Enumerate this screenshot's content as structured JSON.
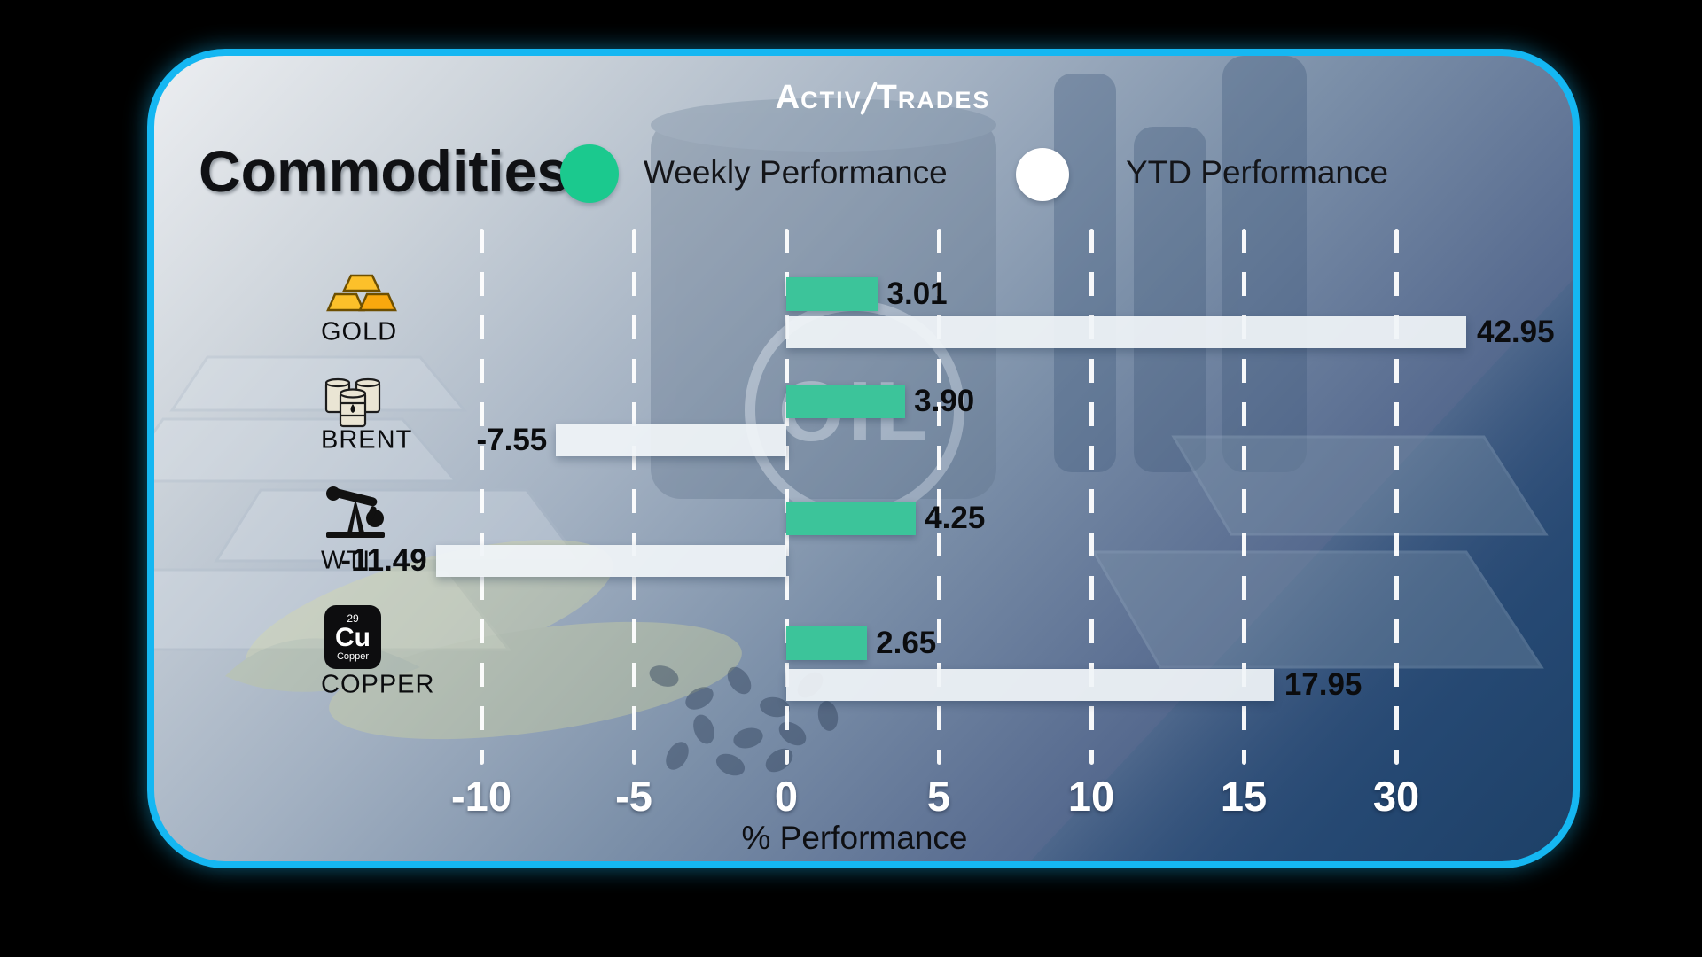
{
  "brand": {
    "first_cap": "A",
    "first_rest": "CTIV",
    "second_cap": "T",
    "second_rest": "RADES"
  },
  "header": {
    "title": "Commodities"
  },
  "background": {
    "oil_text": "OIL"
  },
  "icons": {
    "gold": "gold-bars-icon",
    "brent": "oil-barrels-icon",
    "wti": "oil-pumpjack-icon",
    "copper": {
      "number": "29",
      "symbol": "Cu",
      "name": "Copper"
    }
  },
  "colors": {
    "card_border": "#15b7f2",
    "weekly_dot": "#1bc98e",
    "weekly_bar": "#3cc49a",
    "ytd_dot": "#ffffff",
    "ytd_bar": "#eef2f6",
    "page_background": "#000000"
  },
  "chart_data": {
    "type": "bar",
    "orientation": "horizontal",
    "title": "Commodities",
    "xlabel": "% Performance",
    "grid": "dashed-vertical",
    "legend_position": "top",
    "legend": [
      {
        "name": "Weekly Performance",
        "color": "#1bc98e"
      },
      {
        "name": "YTD Performance",
        "color": "#ffffff"
      }
    ],
    "categories": [
      "GOLD",
      "BRENT",
      "WTI",
      "COPPER"
    ],
    "series": [
      {
        "name": "Weekly Performance",
        "values": [
          3.01,
          3.9,
          4.25,
          2.65
        ]
      },
      {
        "name": "YTD Performance",
        "values": [
          42.95,
          -7.55,
          -11.49,
          17.95
        ]
      }
    ],
    "value_labels": {
      "weekly": [
        "3.01",
        "3.90",
        "4.25",
        "2.65"
      ],
      "ytd": [
        "42.95",
        "-7.55",
        "-11.49",
        "17.95"
      ]
    },
    "ticks": [
      -10,
      -5,
      0,
      5,
      10,
      15,
      30
    ],
    "tick_labels": [
      "-10",
      "-5",
      "0",
      "5",
      "10",
      "15",
      "30"
    ]
  }
}
